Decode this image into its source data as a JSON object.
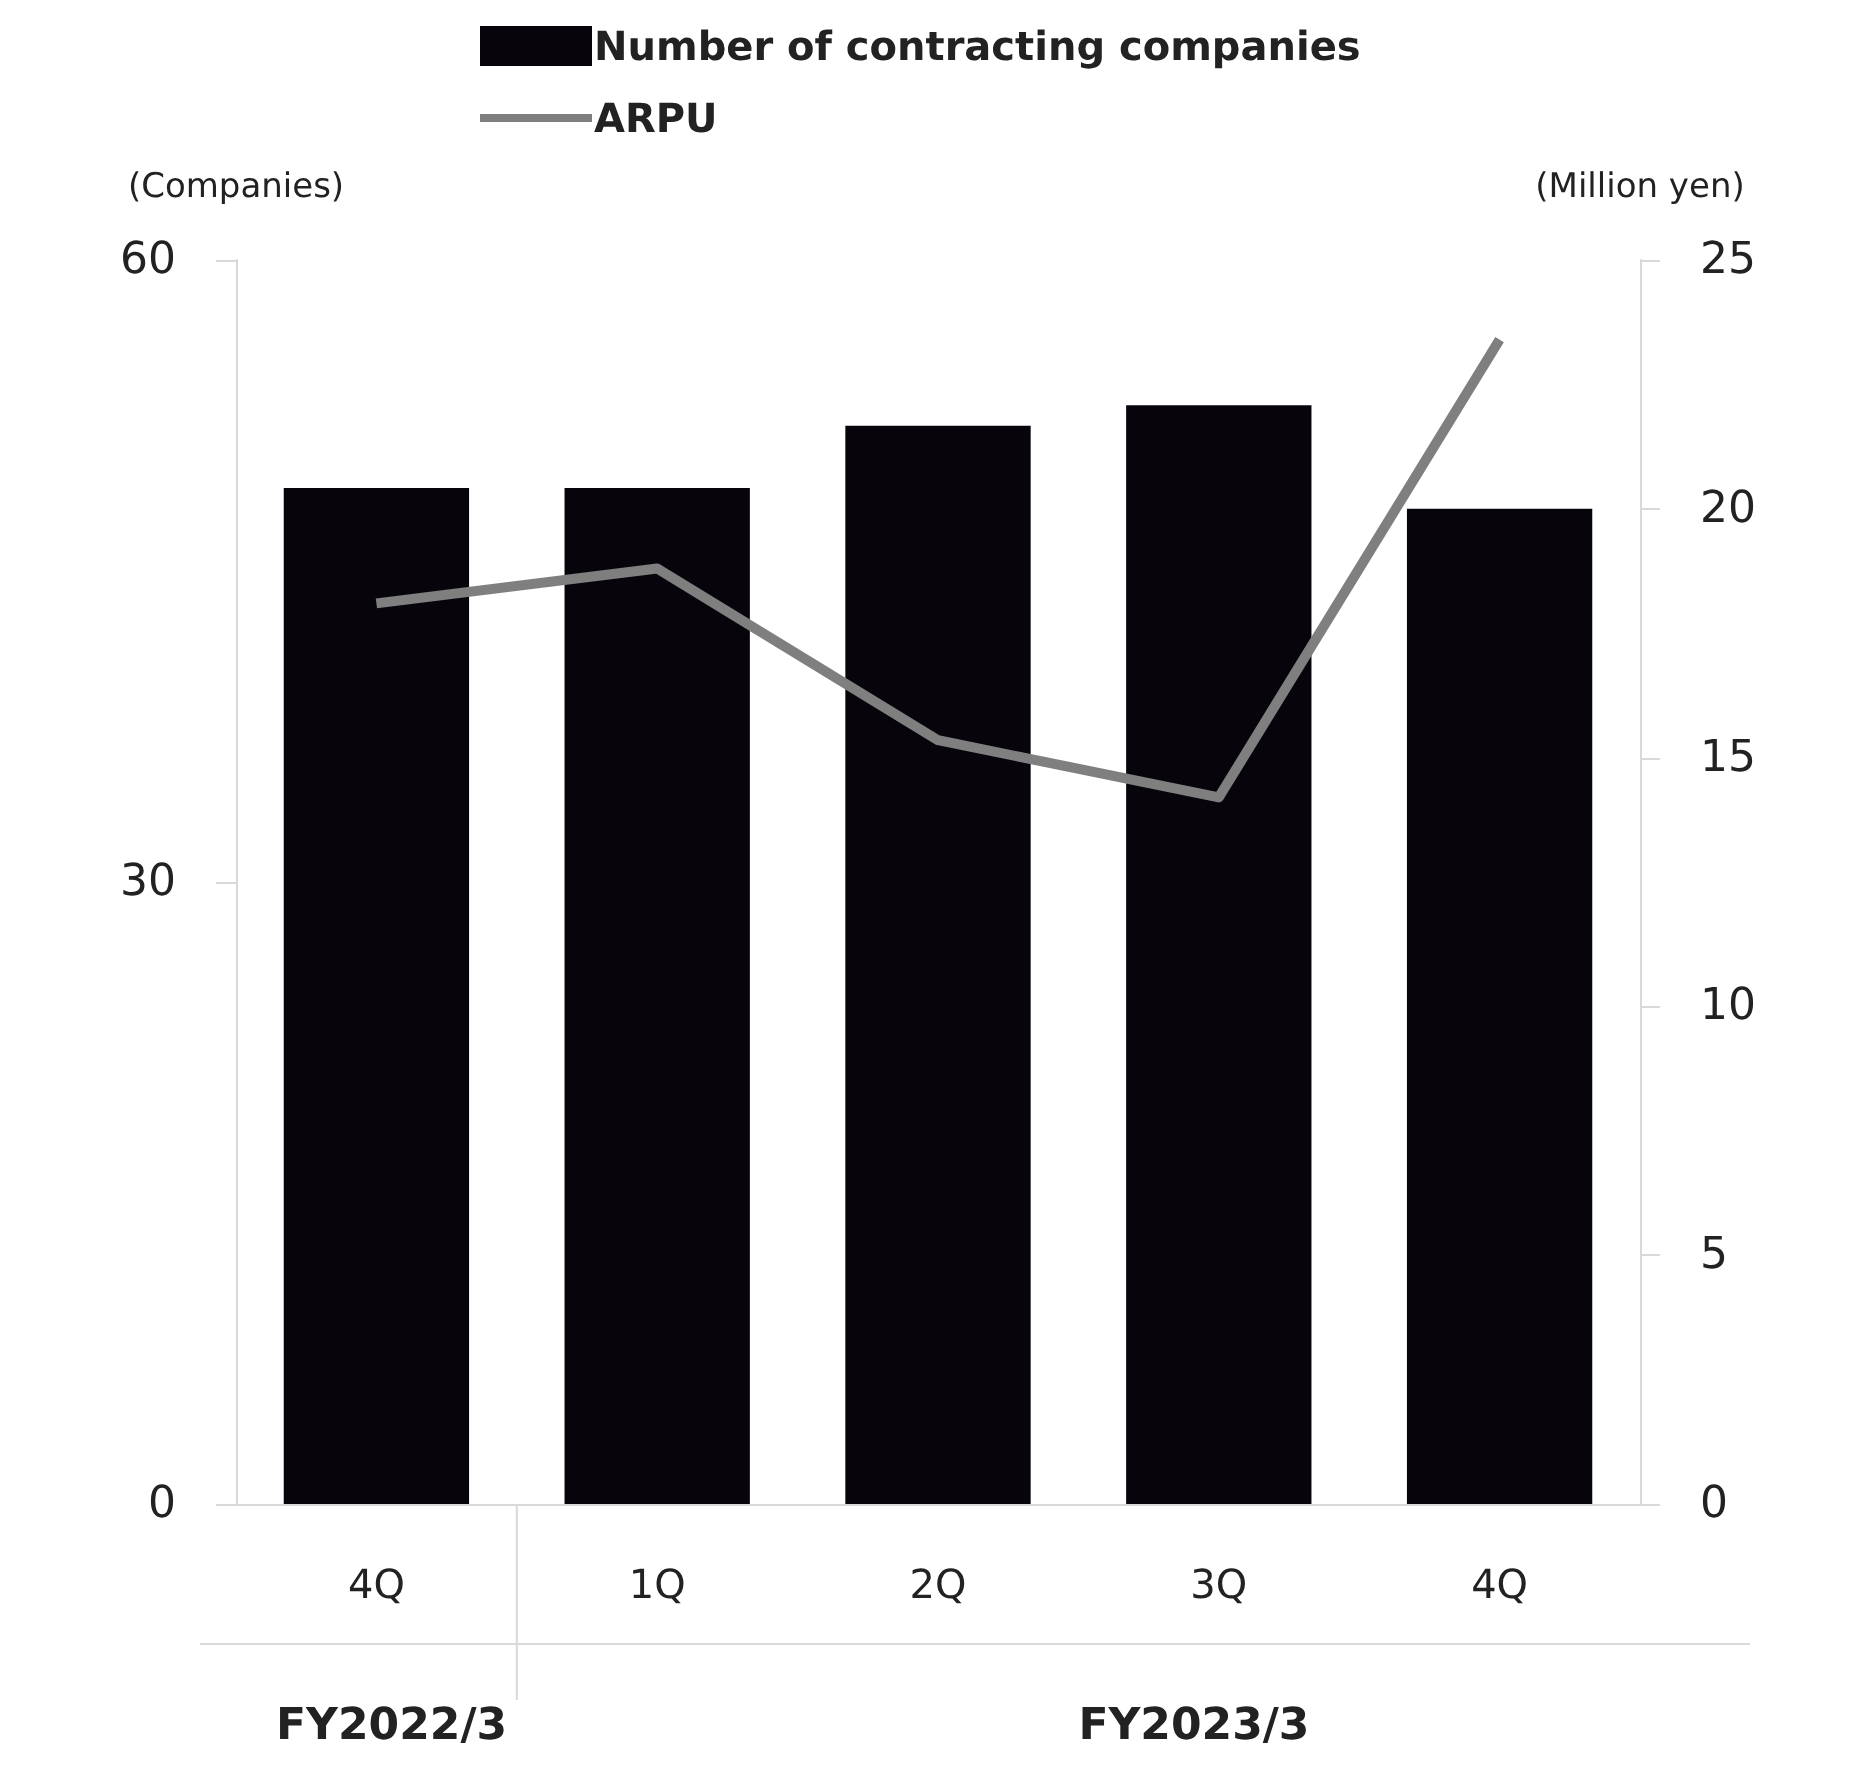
{
  "chart_data": {
    "type": "bar",
    "categories": [
      "4Q",
      "1Q",
      "2Q",
      "3Q",
      "4Q"
    ],
    "series": [
      {
        "name": "Number of contracting companies",
        "color": "#08040c",
        "values": [
          49,
          49,
          52,
          53,
          48
        ]
      },
      {
        "name": "ARPU",
        "type": "line",
        "axis": "y2",
        "color": "#7f7f7f",
        "values": [
          18.1,
          18.8,
          15.35,
          14.2,
          23.4
        ]
      }
    ],
    "ylabel": "(Companies)",
    "y2label": "(Million yen)",
    "ylim": [
      0,
      60
    ],
    "yticks": [
      0,
      30,
      60
    ],
    "y2lim": [
      0,
      25
    ],
    "y2ticks": [
      0,
      5,
      10,
      15,
      20,
      25
    ],
    "annotations": [
      "FY2022/3",
      "FY2023/3"
    ],
    "legend": "top",
    "grid": false,
    "marker": "none",
    "line_style": "solid"
  }
}
